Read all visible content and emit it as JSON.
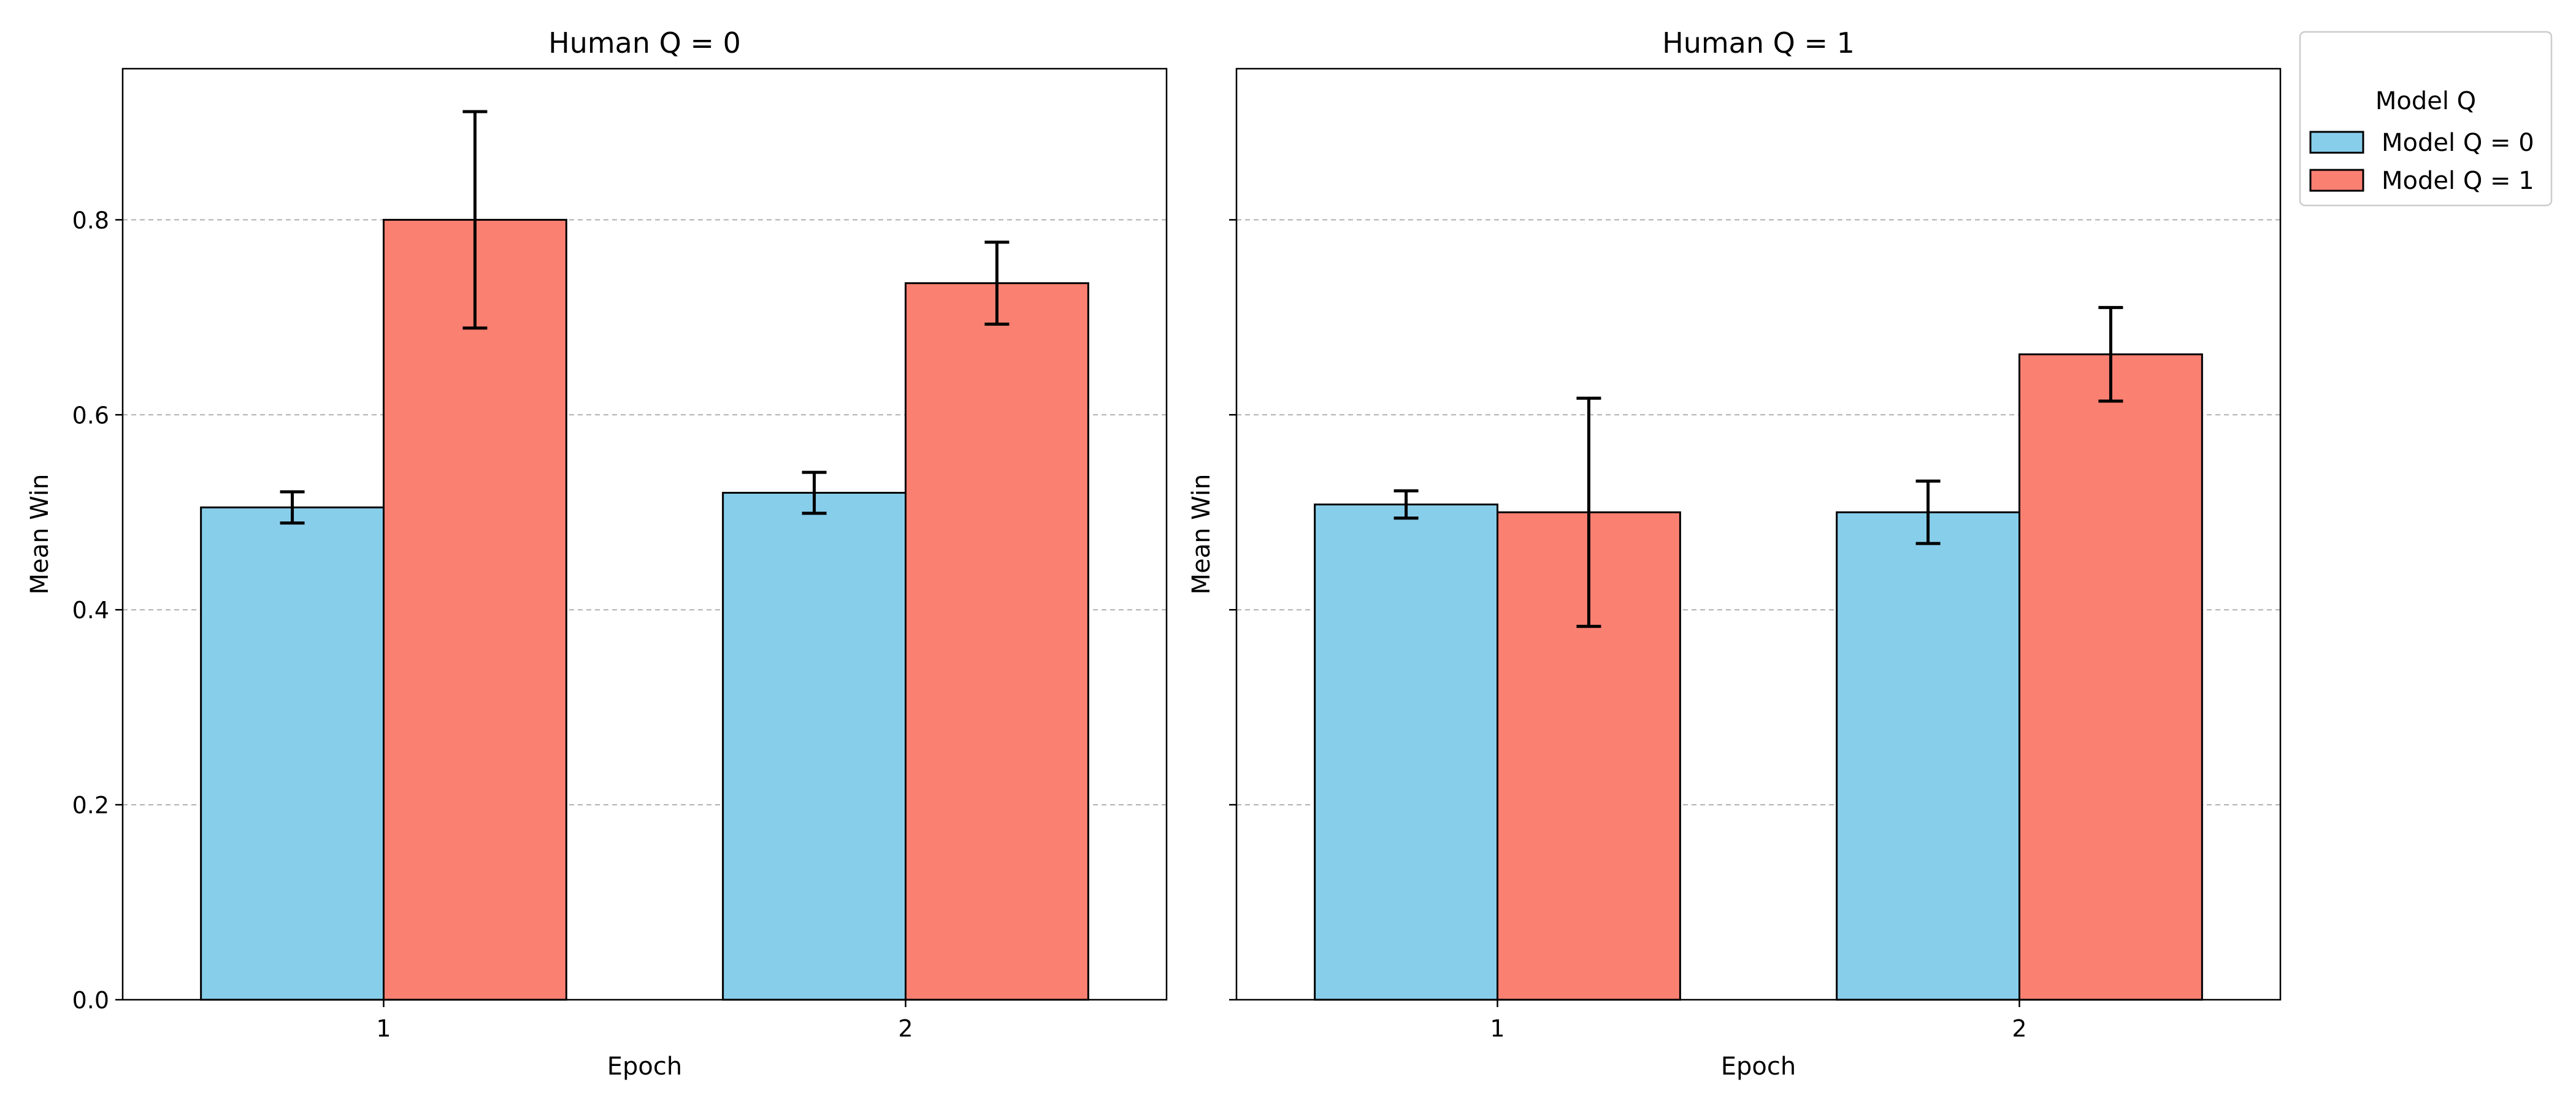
{
  "chart_data": [
    {
      "type": "bar",
      "title": "Human Q = 0",
      "xlabel": "Epoch",
      "ylabel": "Mean Win",
      "categories": [
        "1",
        "2"
      ],
      "ylim": [
        0,
        0.955
      ],
      "yticks": [
        "0.0",
        "0.2",
        "0.4",
        "0.6",
        "0.8"
      ],
      "grid": "y-dashed",
      "series": [
        {
          "name": "Model Q = 0",
          "color": "#87ceeb",
          "values": [
            0.505,
            0.52
          ],
          "errors": [
            0.016,
            0.021
          ]
        },
        {
          "name": "Model Q = 1",
          "color": "#fa8072",
          "values": [
            0.8,
            0.735
          ],
          "errors": [
            0.111,
            0.042
          ]
        }
      ]
    },
    {
      "type": "bar",
      "title": "Human Q = 1",
      "xlabel": "Epoch",
      "ylabel": "Mean Win",
      "categories": [
        "1",
        "2"
      ],
      "ylim": [
        0,
        0.955
      ],
      "yticks": [
        "0.0",
        "0.2",
        "0.4",
        "0.6",
        "0.8"
      ],
      "grid": "y-dashed",
      "series": [
        {
          "name": "Model Q = 0",
          "color": "#87ceeb",
          "values": [
            0.508,
            0.5
          ],
          "errors": [
            0.014,
            0.032
          ]
        },
        {
          "name": "Model Q = 1",
          "color": "#fa8072",
          "values": [
            0.5,
            0.662
          ],
          "errors": [
            0.117,
            0.048
          ]
        }
      ]
    }
  ],
  "legend": {
    "title": "Model Q",
    "placement": "outside-right",
    "entries": [
      {
        "label": "Model Q = 0",
        "color": "#87ceeb"
      },
      {
        "label": "Model Q = 1",
        "color": "#fa8072"
      }
    ]
  }
}
